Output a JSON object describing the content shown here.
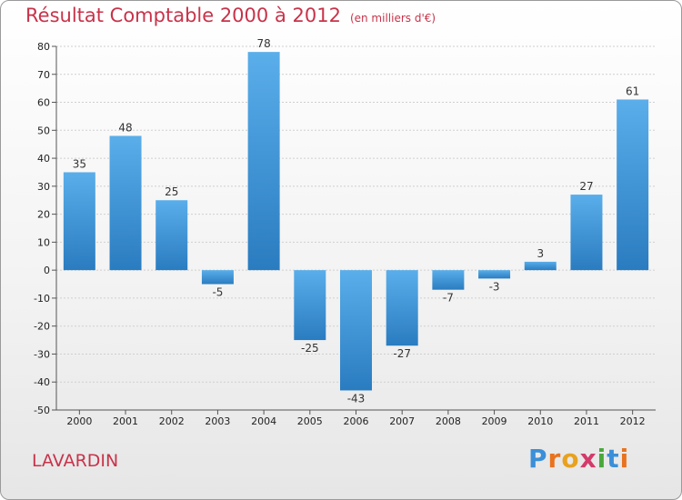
{
  "title": "Résultat Comptable 2000 à 2012",
  "subtitle": "(en milliers d'€)",
  "commune": "LAVARDIN",
  "logo": {
    "text": "Proxiti",
    "letters": [
      {
        "ch": "P",
        "color": "#3b8fd9"
      },
      {
        "ch": "r",
        "color": "#e8731f"
      },
      {
        "ch": "o",
        "color": "#e8a21f"
      },
      {
        "ch": "x",
        "color": "#d43a6a"
      },
      {
        "ch": "i",
        "color": "#4aa83b"
      },
      {
        "ch": "t",
        "color": "#3b8fd9"
      },
      {
        "ch": "i",
        "color": "#e8731f"
      }
    ]
  },
  "colors": {
    "title": "#c8334a",
    "bar_light": "#5aaeea",
    "bar_dark": "#2a7cc0",
    "grid": "#cfcfcf"
  },
  "chart_data": {
    "type": "bar",
    "title": "Résultat Comptable 2000 à 2012",
    "xlabel": "",
    "ylabel": "",
    "ylim": [
      -50,
      80
    ],
    "yticks": [
      80,
      70,
      60,
      50,
      40,
      30,
      20,
      10,
      0,
      -10,
      -20,
      -30,
      -40,
      -50
    ],
    "categories": [
      "2000",
      "2001",
      "2002",
      "2003",
      "2004",
      "2005",
      "2006",
      "2007",
      "2008",
      "2009",
      "2010",
      "2011",
      "2012"
    ],
    "values": [
      35,
      48,
      25,
      -5,
      78,
      -25,
      -43,
      -27,
      -7,
      -3,
      3,
      27,
      61
    ],
    "grid": "horizontal dashed"
  }
}
